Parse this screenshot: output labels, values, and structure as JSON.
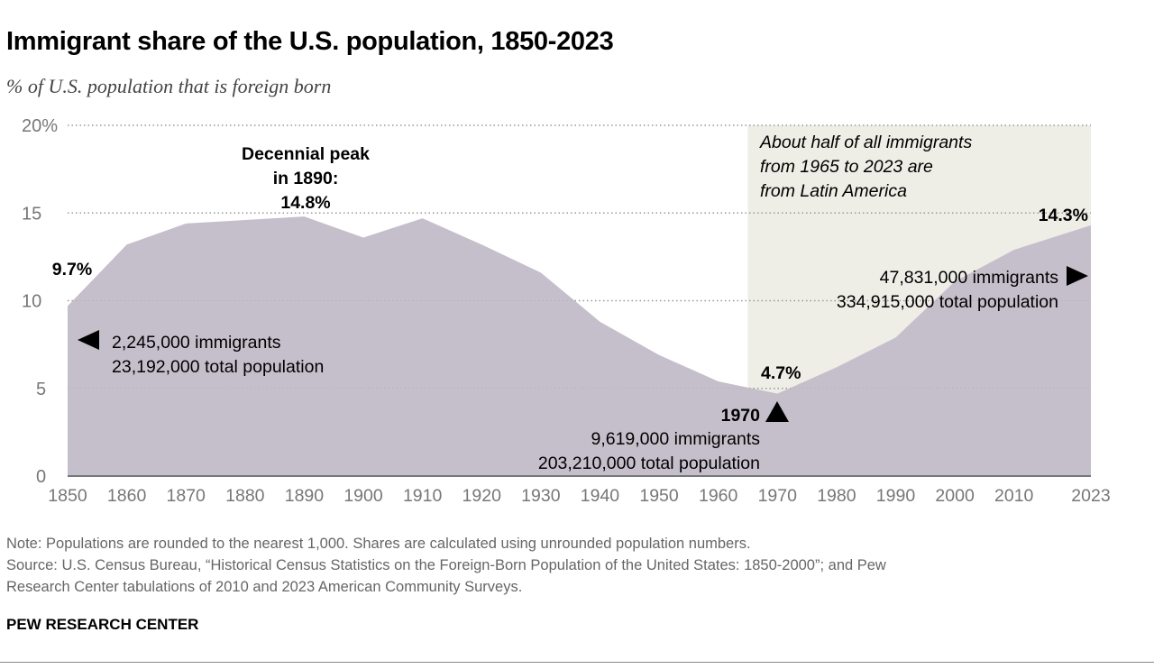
{
  "title": "Immigrant share of the U.S. population, 1850-2023",
  "subtitle": "% of U.S. population that is foreign born",
  "chart_data": {
    "type": "area",
    "x": [
      1850,
      1860,
      1870,
      1880,
      1890,
      1900,
      1910,
      1920,
      1930,
      1940,
      1950,
      1960,
      1970,
      1980,
      1990,
      2000,
      2010,
      2023
    ],
    "values": [
      9.7,
      13.2,
      14.4,
      14.6,
      14.8,
      13.6,
      14.7,
      13.2,
      11.6,
      8.8,
      6.9,
      5.4,
      4.7,
      6.2,
      7.9,
      11.1,
      12.9,
      14.3
    ],
    "xticks": [
      "1850",
      "1860",
      "1870",
      "1880",
      "1890",
      "1900",
      "1910",
      "1920",
      "1930",
      "1940",
      "1950",
      "1960",
      "1970",
      "1980",
      "1990",
      "2000",
      "2010",
      "2023"
    ],
    "yticks": [
      "0",
      "5",
      "10",
      "15",
      "20%"
    ],
    "ytick_values": [
      0,
      5,
      10,
      15,
      20
    ],
    "ylim": [
      0,
      20
    ],
    "xlim": [
      1850,
      2023
    ],
    "grid": "horizontal dotted",
    "highlight_range": [
      1965,
      2023
    ],
    "colors": {
      "area": "#c5bfcb",
      "highlight": "#eeede6",
      "grid": "#999999",
      "axis": "#777777"
    },
    "annotations": {
      "start_value": "9.7%",
      "start_arrow_lines": [
        "2,245,000 immigrants",
        "23,192,000 total population"
      ],
      "peak_lines": [
        "Decennial peak",
        "in 1890:",
        "14.8%"
      ],
      "low_value": "4.7%",
      "low_year": "1970",
      "low_lines": [
        "9,619,000 immigrants",
        "203,210,000 total population"
      ],
      "end_value": "14.3%",
      "end_lines": [
        "47,831,000 immigrants",
        "334,915,000 total population"
      ],
      "highlight_lines": [
        "About half of all immigrants",
        "from 1965 to 2023 are",
        "from Latin America"
      ]
    }
  },
  "footer": {
    "note": "Note: Populations are rounded to the nearest 1,000. Shares are calculated using unrounded population numbers.",
    "source_1": "Source: U.S. Census Bureau, “Historical Census Statistics on the Foreign-Born Population of the United States: 1850-2000”; and Pew",
    "source_2": "Research Center tabulations of 2010 and 2023 American Community Surveys.",
    "brand": "PEW RESEARCH CENTER"
  }
}
